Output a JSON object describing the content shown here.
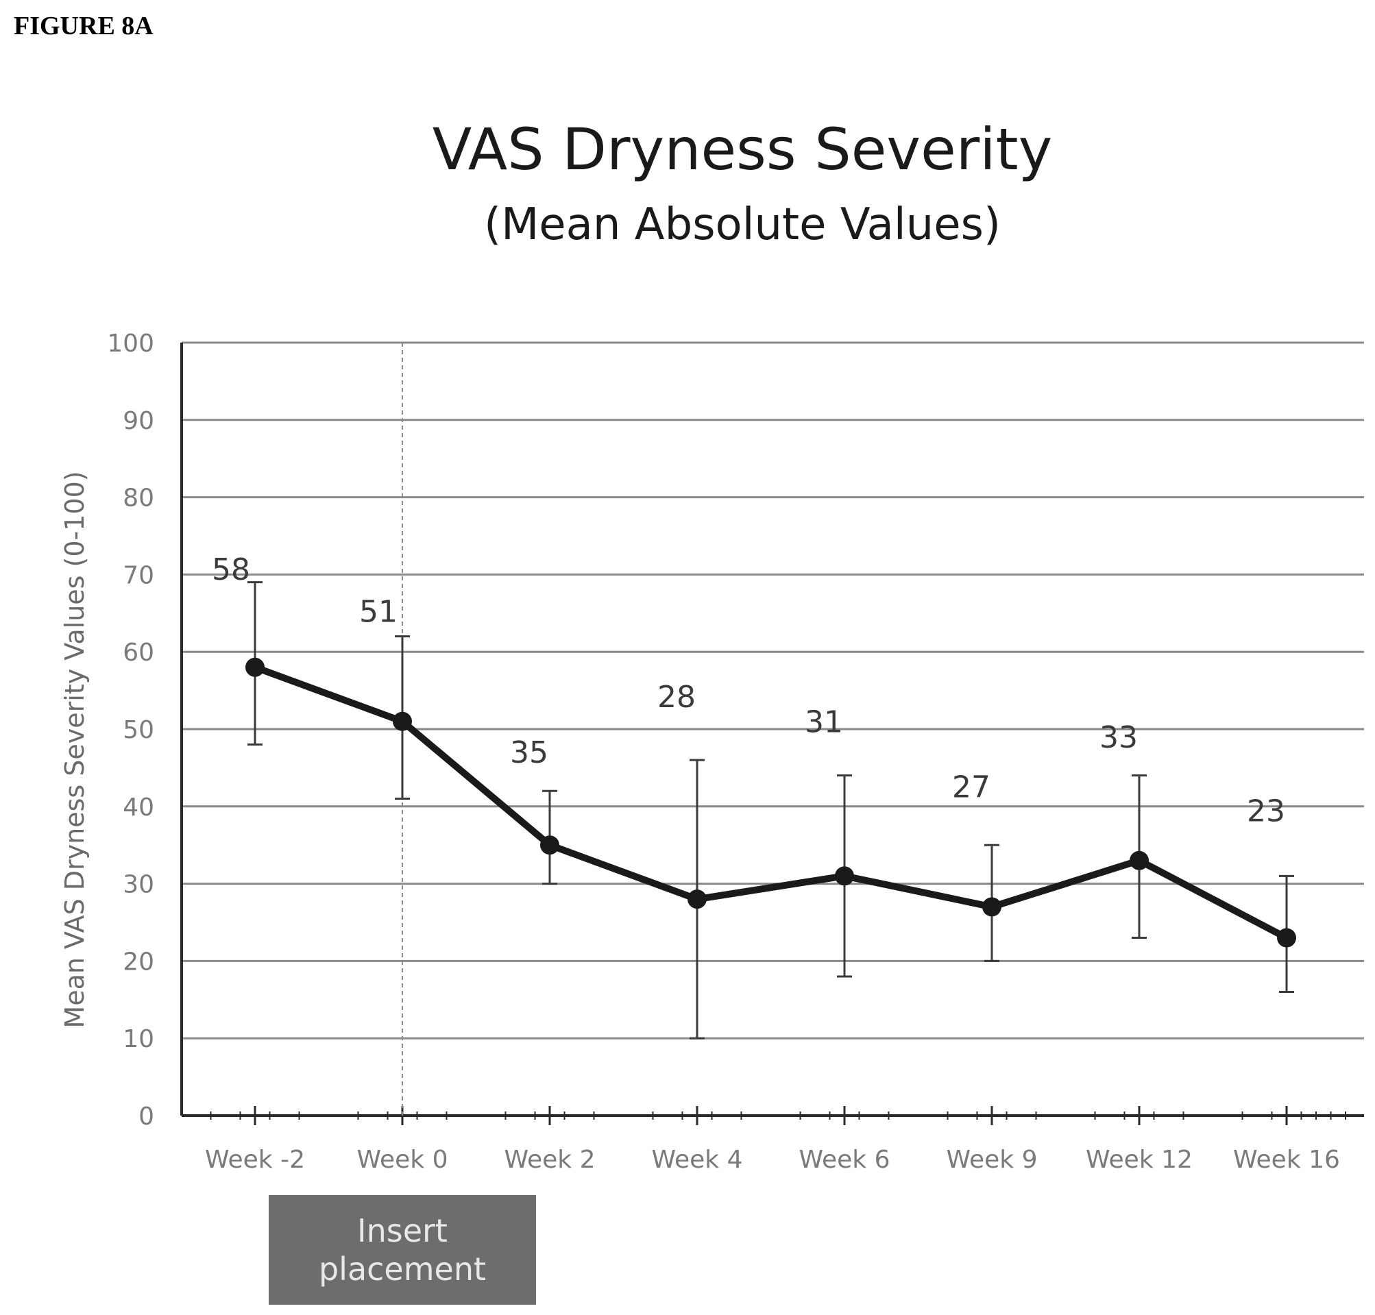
{
  "figure_label": "FIGURE 8A",
  "annotation": "Insert placement",
  "chart_data": {
    "type": "line",
    "title": "VAS Dryness Severity",
    "subtitle": "(Mean Absolute Values)",
    "xlabel": "",
    "ylabel": "Mean VAS Dryness Severity Values (0-100)",
    "categories": [
      "Week -2",
      "Week 0",
      "Week 2",
      "Week 4",
      "Week 6",
      "Week 9",
      "Week 12",
      "Week 16"
    ],
    "values": [
      58,
      51,
      35,
      28,
      31,
      27,
      33,
      23
    ],
    "data_labels": [
      "58",
      "51",
      "35",
      "28",
      "31",
      "27",
      "33",
      "23"
    ],
    "error_upper": [
      69,
      62,
      42,
      46,
      44,
      35,
      44,
      31
    ],
    "error_lower": [
      48,
      41,
      30,
      10,
      18,
      20,
      23,
      16
    ],
    "ylim": [
      0,
      100
    ],
    "yticks": [
      "0",
      "10",
      "20",
      "30",
      "40",
      "50",
      "60",
      "70",
      "80",
      "90",
      "100"
    ],
    "grid": true,
    "reference_line_at": "Week 0",
    "color": "#1a1a1a"
  }
}
